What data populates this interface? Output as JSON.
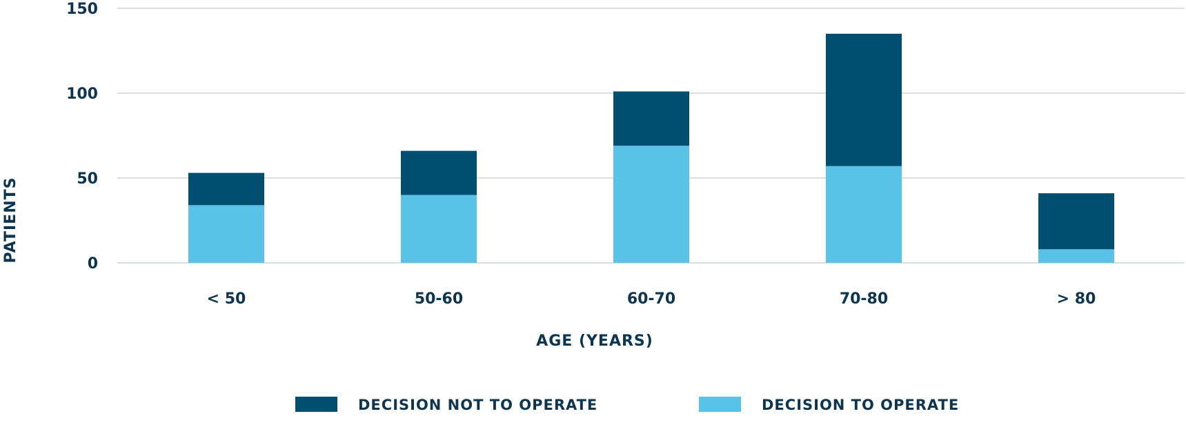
{
  "chart_data": {
    "type": "bar",
    "stacked": true,
    "xlabel": "AGE (YEARS)",
    "ylabel": "PATIENTS",
    "ylim": [
      0,
      150
    ],
    "yticks": [
      0,
      50,
      100,
      150
    ],
    "grid": true,
    "legend_position": "bottom",
    "categories": [
      "< 50",
      "50-60",
      "60-70",
      "70-80",
      "> 80"
    ],
    "series": [
      {
        "name": "DECISION TO OPERATE",
        "color": "#5bc2e7",
        "values": [
          34,
          40,
          69,
          57,
          8
        ]
      },
      {
        "name": "DECISION NOT TO OPERATE",
        "color": "#004f71",
        "values": [
          19,
          26,
          32,
          78,
          33
        ]
      }
    ],
    "legend_order": [
      "DECISION NOT TO OPERATE",
      "DECISION TO OPERATE"
    ]
  }
}
